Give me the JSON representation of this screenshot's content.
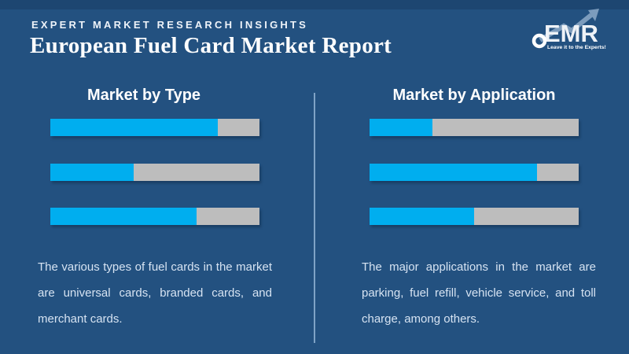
{
  "header": {
    "eyebrow": "EXPERT MARKET RESEARCH INSIGHTS",
    "title": "European Fuel Card Market Report"
  },
  "logo": {
    "name": "EMR",
    "tagline": "Leave it to the Experts!"
  },
  "colors": {
    "background": "#235180",
    "bar_fill": "#00AEEF",
    "bar_track": "#BDBDBD",
    "divider": "#7FA3C6",
    "body_text": "#D6E3F2"
  },
  "chart_data": [
    {
      "type": "bar",
      "title": "Market by Type",
      "orientation": "horizontal",
      "values": [
        80,
        40,
        70
      ],
      "unit": "percent of track filled (estimated, bars unlabeled)",
      "xlim": [
        0,
        100
      ],
      "grid": false,
      "legend": false,
      "note": "The various types of fuel cards in the market are universal cards, branded cards, and merchant cards."
    },
    {
      "type": "bar",
      "title": "Market by Application",
      "orientation": "horizontal",
      "values": [
        30,
        80,
        50
      ],
      "unit": "percent of track filled (estimated, bars unlabeled)",
      "xlim": [
        0,
        100
      ],
      "grid": false,
      "legend": false,
      "note": "The major applications in the market are parking, fuel refill, vehicle service, and toll charge, among others."
    }
  ]
}
